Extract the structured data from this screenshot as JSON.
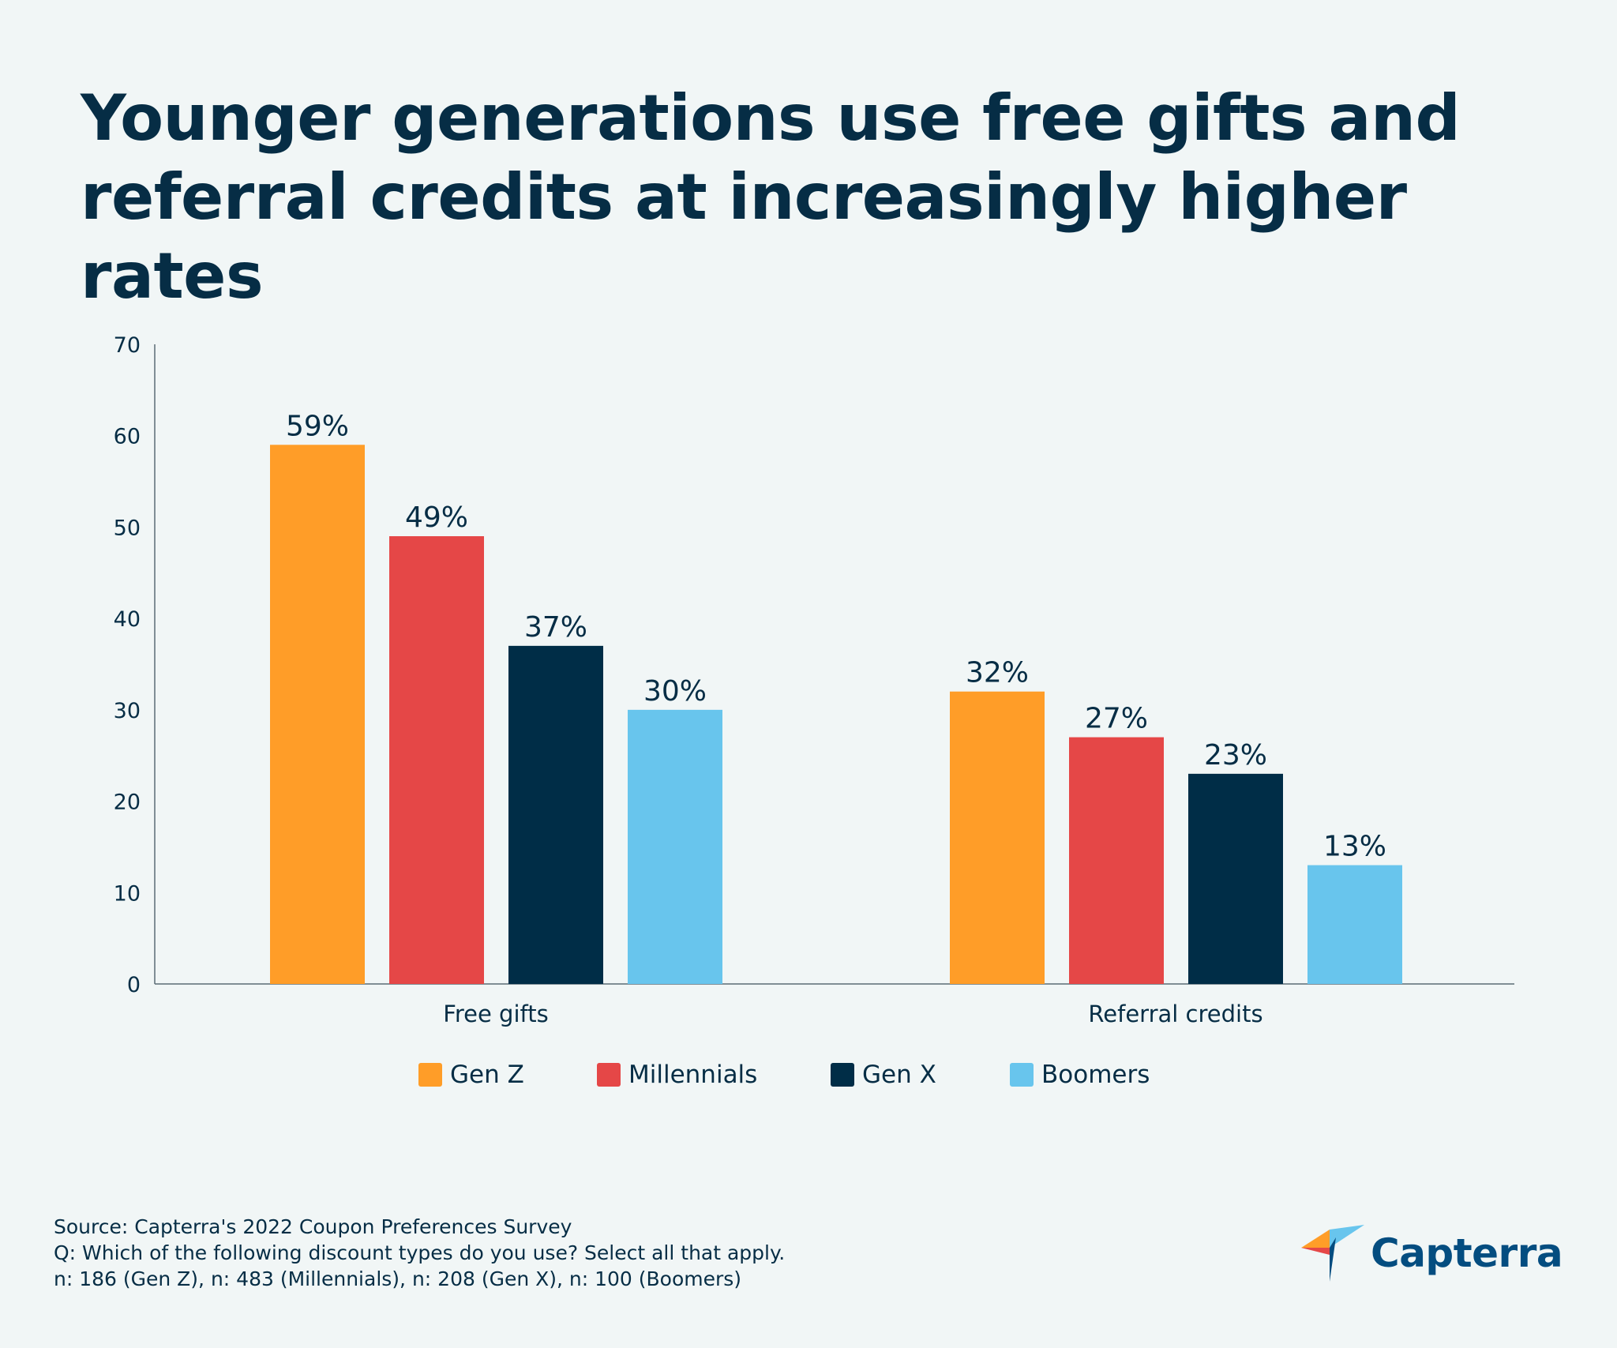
{
  "title_lines": [
    "Younger generations use free gifts and",
    "referral credits at increasingly higher rates"
  ],
  "chart_data": {
    "type": "bar",
    "title": "Younger generations use free gifts and referral credits at increasingly higher rates",
    "categories": [
      "Free gifts",
      "Referral credits"
    ],
    "series": [
      {
        "name": "Gen Z",
        "color": "#ff9d28",
        "values": [
          59,
          32
        ],
        "labels": [
          "59%",
          "32%"
        ]
      },
      {
        "name": "Millennials",
        "color": "#e54747",
        "values": [
          49,
          27
        ],
        "labels": [
          "49%",
          "27%"
        ]
      },
      {
        "name": "Gen X",
        "color": "#002d47",
        "values": [
          37,
          23
        ],
        "labels": [
          "37%",
          "23%"
        ]
      },
      {
        "name": "Boomers",
        "color": "#68c5ed",
        "values": [
          30,
          13
        ],
        "labels": [
          "30%",
          "13%"
        ]
      }
    ],
    "xlabel": "",
    "ylabel": "",
    "ylim": [
      0,
      70
    ],
    "yticks": [
      "0",
      "10",
      "20",
      "30",
      "40",
      "50",
      "60",
      "70"
    ],
    "grid": false,
    "legend_position": "bottom"
  },
  "footer": {
    "source": "Source: Capterra's 2022 Coupon Preferences Survey",
    "question": "Q: Which of the following discount types do you use? Select all that apply.",
    "sample": "n: 186 (Gen Z), n: 483 (Millennials), n: 208 (Gen X), n: 100 (Boomers)"
  },
  "brand": {
    "name": "Capterra",
    "icon": "capterra-logo-icon"
  }
}
